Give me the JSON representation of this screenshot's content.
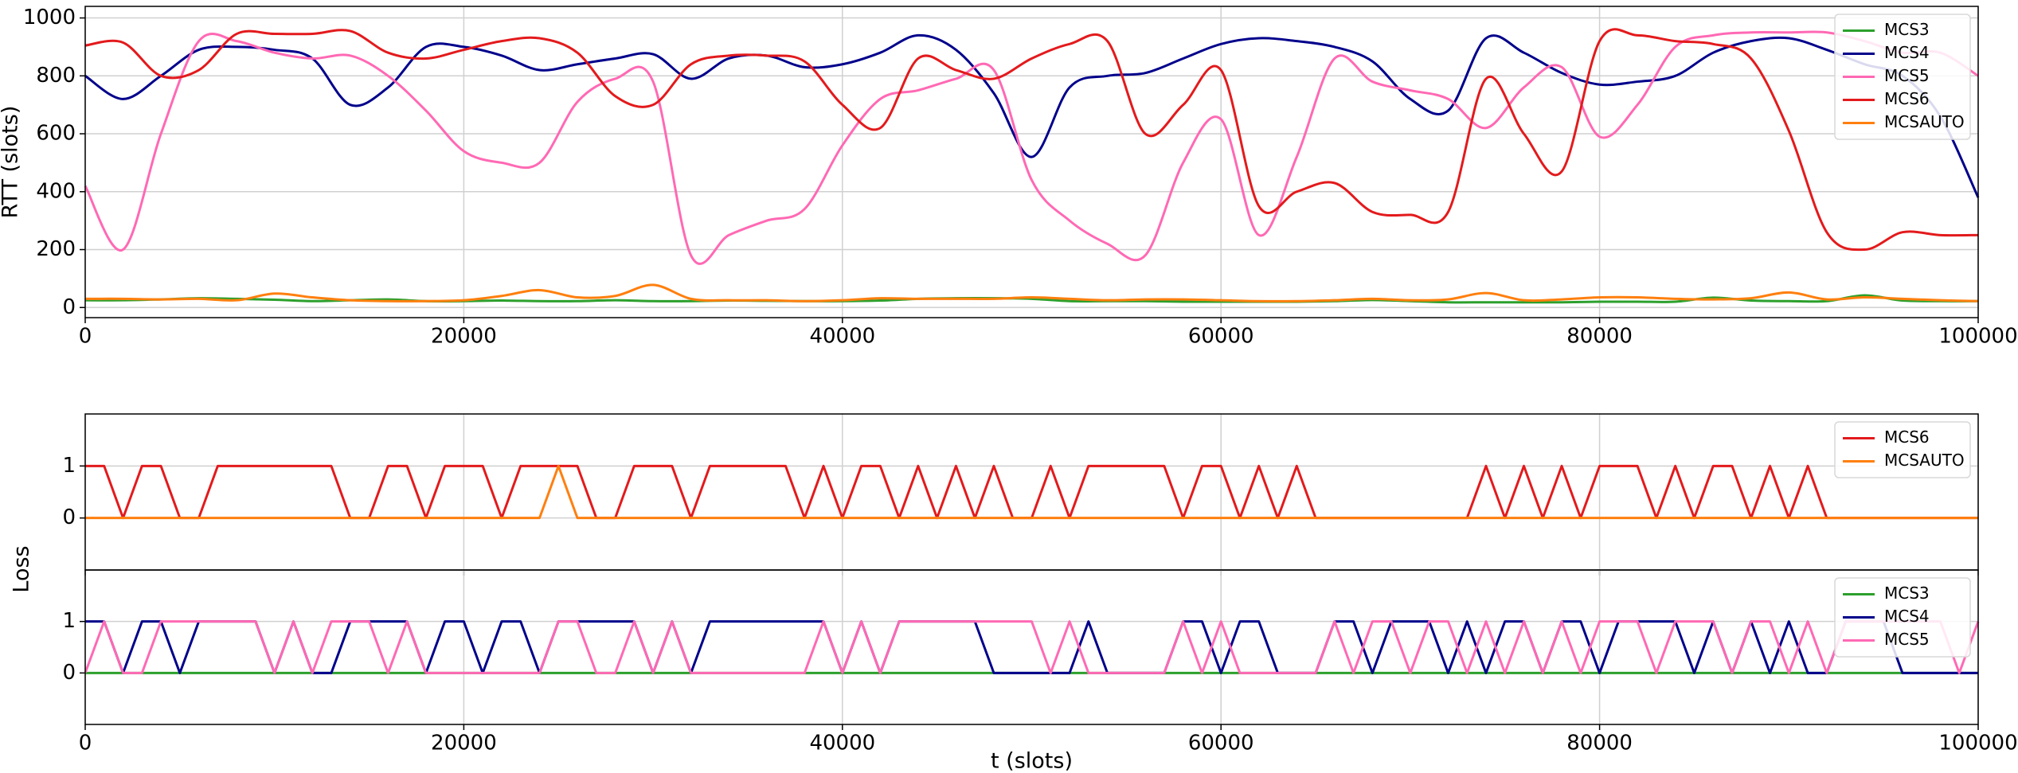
{
  "chart_data": [
    {
      "type": "line",
      "curve": "smooth",
      "ylabel": "RTT (slots)",
      "grid": true,
      "legend": "upper right",
      "xlim": [
        0,
        100000
      ],
      "xticks": [
        0,
        20000,
        40000,
        60000,
        80000,
        100000
      ],
      "ylim": [
        -35,
        1040
      ],
      "yticks": [
        0,
        200,
        400,
        600,
        800,
        1000
      ],
      "x": [
        0,
        2000,
        4000,
        6000,
        8000,
        10000,
        12000,
        14000,
        16000,
        18000,
        20000,
        22000,
        24000,
        26000,
        28000,
        30000,
        32000,
        34000,
        36000,
        38000,
        40000,
        42000,
        44000,
        46000,
        48000,
        50000,
        52000,
        54000,
        56000,
        58000,
        60000,
        62000,
        64000,
        66000,
        68000,
        70000,
        72000,
        74000,
        76000,
        78000,
        80000,
        82000,
        84000,
        86000,
        88000,
        90000,
        92000,
        94000,
        96000,
        98000,
        100000
      ],
      "series": [
        {
          "name": "MCS3",
          "color": "#2ca02c",
          "values": [
            25,
            25,
            28,
            32,
            30,
            27,
            22,
            25,
            28,
            22,
            22,
            24,
            22,
            22,
            25,
            22,
            22,
            24,
            23,
            22,
            22,
            24,
            30,
            32,
            32,
            30,
            22,
            22,
            22,
            20,
            20,
            20,
            20,
            22,
            26,
            22,
            18,
            18,
            18,
            18,
            20,
            20,
            20,
            34,
            24,
            22,
            22,
            42,
            24,
            22,
            22
          ]
        },
        {
          "name": "MCS4",
          "color": "#00008b",
          "values": [
            800,
            720,
            800,
            890,
            900,
            890,
            860,
            700,
            760,
            900,
            900,
            870,
            820,
            840,
            860,
            875,
            790,
            860,
            870,
            830,
            840,
            880,
            940,
            890,
            740,
            520,
            760,
            800,
            810,
            860,
            910,
            930,
            920,
            900,
            850,
            720,
            680,
            930,
            880,
            810,
            770,
            780,
            800,
            880,
            920,
            930,
            890,
            840,
            800,
            660,
            380
          ]
        },
        {
          "name": "MCS5",
          "color": "#ff69b4",
          "values": [
            420,
            200,
            600,
            920,
            920,
            880,
            860,
            870,
            800,
            680,
            540,
            500,
            500,
            710,
            790,
            780,
            180,
            250,
            300,
            340,
            560,
            720,
            750,
            790,
            820,
            440,
            300,
            220,
            180,
            500,
            650,
            250,
            520,
            860,
            780,
            750,
            720,
            620,
            760,
            830,
            590,
            700,
            900,
            940,
            950,
            950,
            950,
            920,
            880,
            880,
            800
          ]
        },
        {
          "name": "MCS6",
          "color": "#e31a1c",
          "values": [
            905,
            915,
            800,
            820,
            945,
            945,
            945,
            955,
            880,
            860,
            890,
            920,
            930,
            880,
            730,
            700,
            840,
            870,
            870,
            850,
            700,
            620,
            860,
            820,
            790,
            860,
            910,
            920,
            600,
            700,
            820,
            350,
            400,
            430,
            330,
            320,
            330,
            790,
            600,
            470,
            920,
            940,
            920,
            910,
            860,
            610,
            260,
            200,
            260,
            250,
            250
          ]
        },
        {
          "name": "MCSAUTO",
          "color": "#ff7f0e",
          "values": [
            30,
            30,
            28,
            30,
            25,
            48,
            35,
            25,
            22,
            22,
            25,
            40,
            60,
            35,
            40,
            78,
            30,
            25,
            25,
            22,
            25,
            32,
            30,
            30,
            30,
            35,
            30,
            25,
            28,
            28,
            25,
            22,
            22,
            25,
            30,
            25,
            28,
            50,
            25,
            28,
            35,
            35,
            30,
            28,
            32,
            52,
            28,
            35,
            30,
            25,
            22
          ]
        }
      ]
    },
    {
      "type": "line",
      "curve": "straight",
      "ylabel": "Loss",
      "grid": true,
      "legend": "upper right",
      "xlim": [
        0,
        100000
      ],
      "ylim": [
        -1,
        2
      ],
      "yticks": [
        0,
        1
      ],
      "x": [
        0,
        1000,
        2000,
        3000,
        4000,
        5000,
        6000,
        7000,
        8000,
        9000,
        10000,
        11000,
        12000,
        13000,
        14000,
        15000,
        16000,
        17000,
        18000,
        19000,
        20000,
        21000,
        22000,
        23000,
        24000,
        25000,
        26000,
        27000,
        28000,
        29000,
        30000,
        31000,
        32000,
        33000,
        34000,
        35000,
        36000,
        37000,
        38000,
        39000,
        40000,
        41000,
        42000,
        43000,
        44000,
        45000,
        46000,
        47000,
        48000,
        49000,
        50000,
        51000,
        52000,
        53000,
        54000,
        55000,
        56000,
        57000,
        58000,
        59000,
        60000,
        61000,
        62000,
        63000,
        64000,
        65000,
        66000,
        67000,
        68000,
        69000,
        70000,
        71000,
        72000,
        73000,
        74000,
        75000,
        76000,
        77000,
        78000,
        79000,
        80000,
        81000,
        82000,
        83000,
        84000,
        85000,
        86000,
        87000,
        88000,
        89000,
        90000,
        91000,
        92000,
        93000,
        94000,
        95000,
        96000,
        97000,
        98000,
        99000,
        100000
      ],
      "series": [
        {
          "name": "MCS6",
          "color": "#e31a1c",
          "values": [
            1,
            1,
            0,
            1,
            1,
            0,
            0,
            1,
            1,
            1,
            1,
            1,
            1,
            1,
            0,
            0,
            1,
            1,
            0,
            1,
            1,
            1,
            0,
            1,
            1,
            1,
            1,
            0,
            0,
            1,
            1,
            1,
            0,
            1,
            1,
            1,
            1,
            1,
            0,
            1,
            0,
            1,
            1,
            0,
            1,
            0,
            1,
            0,
            1,
            0,
            0,
            1,
            0,
            1,
            1,
            1,
            1,
            1,
            0,
            1,
            1,
            0,
            1,
            0,
            1,
            0,
            0,
            0,
            0,
            0,
            0,
            0,
            0,
            0,
            1,
            0,
            1,
            0,
            1,
            0,
            1,
            1,
            1,
            0,
            1,
            0,
            1,
            1,
            0,
            1,
            0,
            1,
            0,
            0,
            0,
            0,
            0,
            0,
            0,
            0,
            0
          ]
        },
        {
          "name": "MCSAUTO",
          "color": "#ff7f0e",
          "values": [
            0,
            0,
            0,
            0,
            0,
            0,
            0,
            0,
            0,
            0,
            0,
            0,
            0,
            0,
            0,
            0,
            0,
            0,
            0,
            0,
            0,
            0,
            0,
            0,
            0,
            1,
            0,
            0,
            0,
            0,
            0,
            0,
            0,
            0,
            0,
            0,
            0,
            0,
            0,
            0,
            0,
            0,
            0,
            0,
            0,
            0,
            0,
            0,
            0,
            0,
            0,
            0,
            0,
            0,
            0,
            0,
            0,
            0,
            0,
            0,
            0,
            0,
            0,
            0,
            0,
            0,
            0,
            0,
            0,
            0,
            0,
            0,
            0,
            0,
            0,
            0,
            0,
            0,
            0,
            0,
            0,
            0,
            0,
            0,
            0,
            0,
            0,
            0,
            0,
            0,
            0,
            0,
            0,
            0,
            0,
            0,
            0,
            0,
            0,
            0,
            0
          ]
        }
      ]
    },
    {
      "type": "line",
      "curve": "straight",
      "xlabel": "t (slots)",
      "grid": true,
      "legend": "upper right",
      "xlim": [
        0,
        100000
      ],
      "xticks": [
        0,
        20000,
        40000,
        60000,
        80000,
        100000
      ],
      "ylim": [
        -1,
        2
      ],
      "yticks": [
        0,
        1
      ],
      "x": [
        0,
        1000,
        2000,
        3000,
        4000,
        5000,
        6000,
        7000,
        8000,
        9000,
        10000,
        11000,
        12000,
        13000,
        14000,
        15000,
        16000,
        17000,
        18000,
        19000,
        20000,
        21000,
        22000,
        23000,
        24000,
        25000,
        26000,
        27000,
        28000,
        29000,
        30000,
        31000,
        32000,
        33000,
        34000,
        35000,
        36000,
        37000,
        38000,
        39000,
        40000,
        41000,
        42000,
        43000,
        44000,
        45000,
        46000,
        47000,
        48000,
        49000,
        50000,
        51000,
        52000,
        53000,
        54000,
        55000,
        56000,
        57000,
        58000,
        59000,
        60000,
        61000,
        62000,
        63000,
        64000,
        65000,
        66000,
        67000,
        68000,
        69000,
        70000,
        71000,
        72000,
        73000,
        74000,
        75000,
        76000,
        77000,
        78000,
        79000,
        80000,
        81000,
        82000,
        83000,
        84000,
        85000,
        86000,
        87000,
        88000,
        89000,
        90000,
        91000,
        92000,
        93000,
        94000,
        95000,
        96000,
        97000,
        98000,
        99000,
        100000
      ],
      "series": [
        {
          "name": "MCS3",
          "color": "#2ca02c",
          "values": [
            0,
            0,
            0,
            0,
            0,
            0,
            0,
            0,
            0,
            0,
            0,
            0,
            0,
            0,
            0,
            0,
            0,
            0,
            0,
            0,
            0,
            0,
            0,
            0,
            0,
            0,
            0,
            0,
            0,
            0,
            0,
            0,
            0,
            0,
            0,
            0,
            0,
            0,
            0,
            0,
            0,
            0,
            0,
            0,
            0,
            0,
            0,
            0,
            0,
            0,
            0,
            0,
            0,
            0,
            0,
            0,
            0,
            0,
            0,
            0,
            0,
            0,
            0,
            0,
            0,
            0,
            0,
            0,
            0,
            0,
            0,
            0,
            0,
            0,
            0,
            0,
            0,
            0,
            0,
            0,
            0,
            0,
            0,
            0,
            0,
            0,
            0,
            0,
            0,
            0,
            0,
            0,
            0,
            0,
            0,
            0,
            0,
            0,
            0,
            0,
            0
          ]
        },
        {
          "name": "MCS4",
          "color": "#00008b",
          "values": [
            1,
            1,
            0,
            1,
            1,
            0,
            1,
            1,
            1,
            1,
            0,
            1,
            0,
            0,
            1,
            1,
            1,
            1,
            0,
            1,
            1,
            0,
            1,
            1,
            0,
            1,
            1,
            1,
            1,
            1,
            0,
            1,
            0,
            1,
            1,
            1,
            1,
            1,
            1,
            1,
            0,
            1,
            0,
            1,
            1,
            1,
            1,
            1,
            0,
            0,
            0,
            0,
            0,
            1,
            0,
            0,
            0,
            0,
            1,
            1,
            0,
            1,
            1,
            0,
            0,
            0,
            1,
            1,
            0,
            1,
            1,
            1,
            0,
            1,
            0,
            1,
            1,
            0,
            1,
            1,
            0,
            1,
            1,
            1,
            1,
            0,
            1,
            0,
            1,
            0,
            1,
            0,
            0,
            1,
            1,
            1,
            0,
            0,
            0,
            0,
            0
          ]
        },
        {
          "name": "MCS5",
          "color": "#ff69b4",
          "values": [
            0,
            1,
            0,
            0,
            1,
            1,
            1,
            1,
            1,
            1,
            0,
            1,
            0,
            1,
            1,
            1,
            0,
            1,
            0,
            0,
            0,
            0,
            0,
            0,
            0,
            1,
            1,
            0,
            0,
            1,
            0,
            1,
            0,
            0,
            0,
            0,
            0,
            0,
            0,
            1,
            0,
            1,
            0,
            1,
            1,
            1,
            1,
            1,
            1,
            1,
            1,
            0,
            1,
            0,
            0,
            0,
            0,
            0,
            1,
            0,
            1,
            0,
            0,
            0,
            0,
            0,
            1,
            0,
            1,
            1,
            0,
            1,
            1,
            0,
            1,
            0,
            1,
            0,
            1,
            0,
            1,
            1,
            1,
            0,
            1,
            1,
            1,
            0,
            1,
            1,
            0,
            1,
            0,
            1,
            1,
            1,
            1,
            1,
            1,
            0,
            1
          ]
        }
      ]
    }
  ]
}
